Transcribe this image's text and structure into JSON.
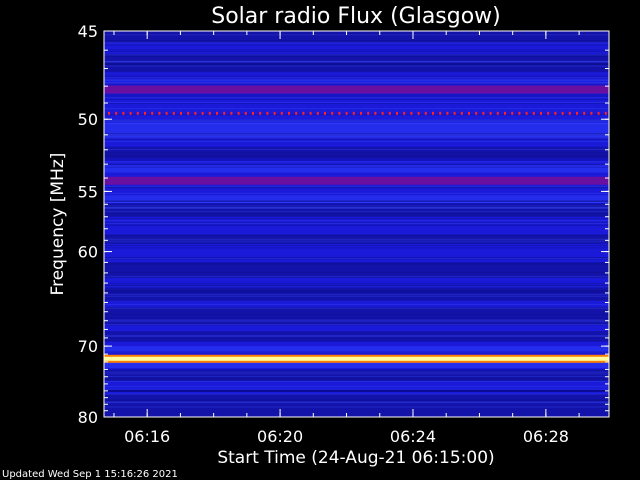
{
  "chart_data": {
    "type": "heatmap",
    "title": "Solar radio Flux (Glasgow)",
    "xlabel": "Start Time (24-Aug-21 06:15:00)",
    "ylabel": "Frequency [MHz]",
    "x_range_minutes": [
      -0.3,
      14.9
    ],
    "x_ticks": [
      {
        "minute": 1,
        "label": "06:16"
      },
      {
        "minute": 5,
        "label": "06:20"
      },
      {
        "minute": 9,
        "label": "06:24"
      },
      {
        "minute": 13,
        "label": "06:28"
      }
    ],
    "y_range_mhz": [
      45,
      80
    ],
    "y_scale": "reciprocal",
    "y_ticks": [
      {
        "mhz": 45,
        "label": "45"
      },
      {
        "mhz": 50,
        "label": "50"
      },
      {
        "mhz": 55,
        "label": "55"
      },
      {
        "mhz": 60,
        "label": "60"
      },
      {
        "mhz": 70,
        "label": "70"
      },
      {
        "mhz": 80,
        "label": "80"
      }
    ],
    "bands": [
      {
        "mhz": 48.2,
        "level": "medium"
      },
      {
        "mhz": 49.6,
        "level": "dotted"
      },
      {
        "mhz": 54.2,
        "level": "medium"
      },
      {
        "mhz": 71.6,
        "level": "very high"
      },
      {
        "mhz": 76.0,
        "level": "low"
      }
    ],
    "colors": {
      "background": "#1a1ad8",
      "dark_band": "#0a0a70",
      "medium": "#6a10a0",
      "strong": "#ff2020",
      "very_high": "#ffffa0"
    }
  },
  "footer": {
    "updated": "Updated Wed Sep  1 15:16:26 2021"
  }
}
